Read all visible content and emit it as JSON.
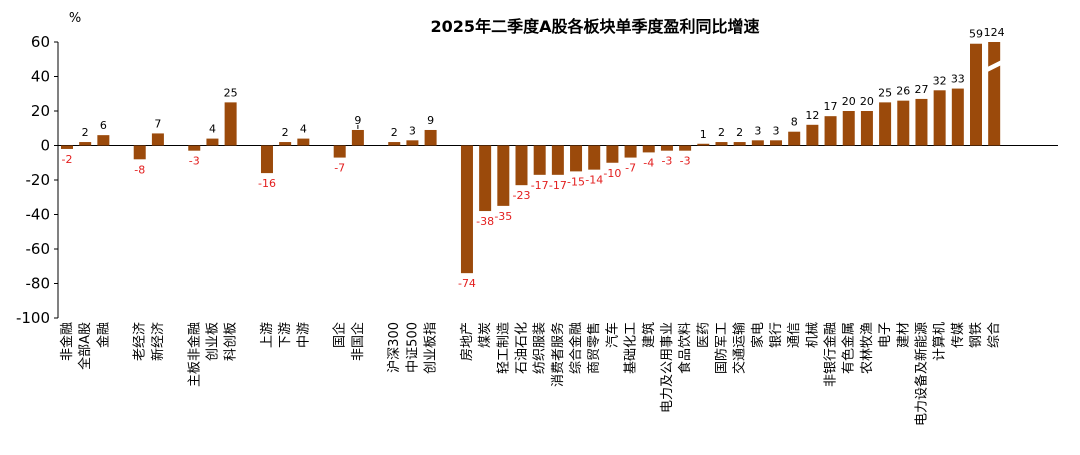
{
  "chart_data": {
    "type": "bar",
    "title": "2025年二季度A股各板块单季度盈利同比增速",
    "unit_label": "%",
    "ylim": [
      -100,
      60
    ],
    "yticks": [
      60,
      40,
      20,
      0,
      -20,
      -40,
      -60,
      -80,
      -100
    ],
    "bar_color": "#9b4a0b",
    "negative_label_color": "#e31e1e",
    "axis_break_category": "综合",
    "categories": [
      {
        "name": "非金融",
        "value": -2,
        "label": "-2"
      },
      {
        "name": "全部A股",
        "value": 2,
        "label": "2"
      },
      {
        "name": "金融",
        "value": 6,
        "label": "6"
      },
      null,
      {
        "name": "老经济",
        "value": -8,
        "label": "-8"
      },
      {
        "name": "新经济",
        "value": 7,
        "label": "7"
      },
      null,
      {
        "name": "主板非金融",
        "value": -3,
        "label": "-3"
      },
      {
        "name": "创业板",
        "value": 4,
        "label": "4"
      },
      {
        "name": "科创板",
        "value": 25,
        "label": "25"
      },
      null,
      {
        "name": "上游",
        "value": -16,
        "label": "-16"
      },
      {
        "name": "下游",
        "value": 2,
        "label": "2"
      },
      {
        "name": "中游",
        "value": 4,
        "label": "4"
      },
      null,
      {
        "name": "国企",
        "value": -7,
        "label": "-7"
      },
      {
        "name": "非国企",
        "value": 9,
        "label": "9"
      },
      null,
      {
        "name": "沪深300",
        "value": 2,
        "label": "2"
      },
      {
        "name": "中证500",
        "value": 3,
        "label": "3"
      },
      {
        "name": "创业板指",
        "value": 9,
        "label": "9"
      },
      null,
      {
        "name": "房地产",
        "value": -74,
        "label": "-74"
      },
      {
        "name": "煤炭",
        "value": -38,
        "label": "-38"
      },
      {
        "name": "轻工制造",
        "value": -35,
        "label": "-35"
      },
      {
        "name": "石油石化",
        "value": -23,
        "label": "-23"
      },
      {
        "name": "纺织服装",
        "value": -17,
        "label": "-17"
      },
      {
        "name": "消费者服务",
        "value": -17,
        "label": "-17"
      },
      {
        "name": "综合金融",
        "value": -15,
        "label": "-15"
      },
      {
        "name": "商贸零售",
        "value": -14,
        "label": "-14"
      },
      {
        "name": "汽车",
        "value": -10,
        "label": "-10"
      },
      {
        "name": "基础化工",
        "value": -7,
        "label": "-7"
      },
      {
        "name": "建筑",
        "value": -4,
        "label": "-4"
      },
      {
        "name": "电力及公用事业",
        "value": -3,
        "label": "-3"
      },
      {
        "name": "食品饮料",
        "value": -3,
        "label": "-3"
      },
      {
        "name": "医药",
        "value": 1,
        "label": "1"
      },
      {
        "name": "国防军工",
        "value": 2,
        "label": "2"
      },
      {
        "name": "交通运输",
        "value": 2,
        "label": "2"
      },
      {
        "name": "家电",
        "value": 3,
        "label": "3"
      },
      {
        "name": "银行",
        "value": 3,
        "label": "3"
      },
      {
        "name": "通信",
        "value": 8,
        "label": "8"
      },
      {
        "name": "机械",
        "value": 12,
        "label": "12"
      },
      {
        "name": "非银行金融",
        "value": 17,
        "label": "17"
      },
      {
        "name": "有色金属",
        "value": 20,
        "label": "20"
      },
      {
        "name": "农林牧渔",
        "value": 20,
        "label": "20"
      },
      {
        "name": "电子",
        "value": 25,
        "label": "25"
      },
      {
        "name": "建材",
        "value": 26,
        "label": "26"
      },
      {
        "name": "电力设备及新能源",
        "value": 27,
        "label": "27"
      },
      {
        "name": "计算机",
        "value": 32,
        "label": "32"
      },
      {
        "name": "传媒",
        "value": 33,
        "label": "33"
      },
      {
        "name": "钢铁",
        "value": 59,
        "label": "59"
      },
      {
        "name": "综合",
        "value": 124,
        "label": "124"
      }
    ]
  }
}
